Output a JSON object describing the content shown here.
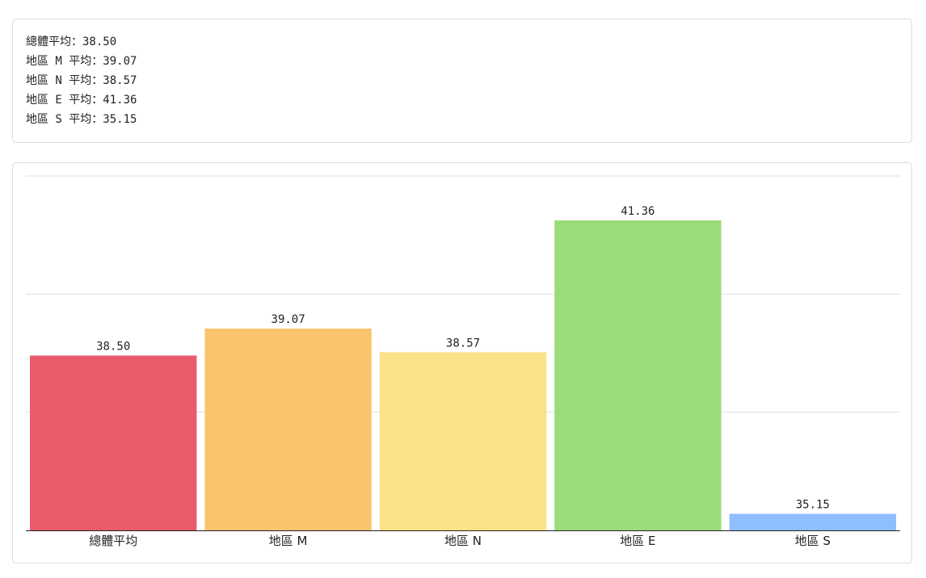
{
  "summary": {
    "lines": [
      "總體平均：38.50",
      "地區 M 平均：39.07",
      "地區 N 平均：38.57",
      "地區 E 平均：41.36",
      "地區 S 平均：35.15"
    ]
  },
  "chart_data": {
    "type": "bar",
    "categories": [
      "總體平均",
      "地區 M",
      "地區 N",
      "地區 E",
      "地區 S"
    ],
    "values": [
      38.5,
      39.07,
      38.57,
      41.36,
      35.15
    ],
    "value_labels": [
      "38.50",
      "39.07",
      "38.57",
      "41.36",
      "35.15"
    ],
    "colors": [
      "#ea5b6a",
      "#f9c46b",
      "#fbe187",
      "#9bdc7a",
      "#8fbeff"
    ],
    "ylim": [
      34.8,
      42.3
    ],
    "grid": true,
    "legend": "none"
  }
}
